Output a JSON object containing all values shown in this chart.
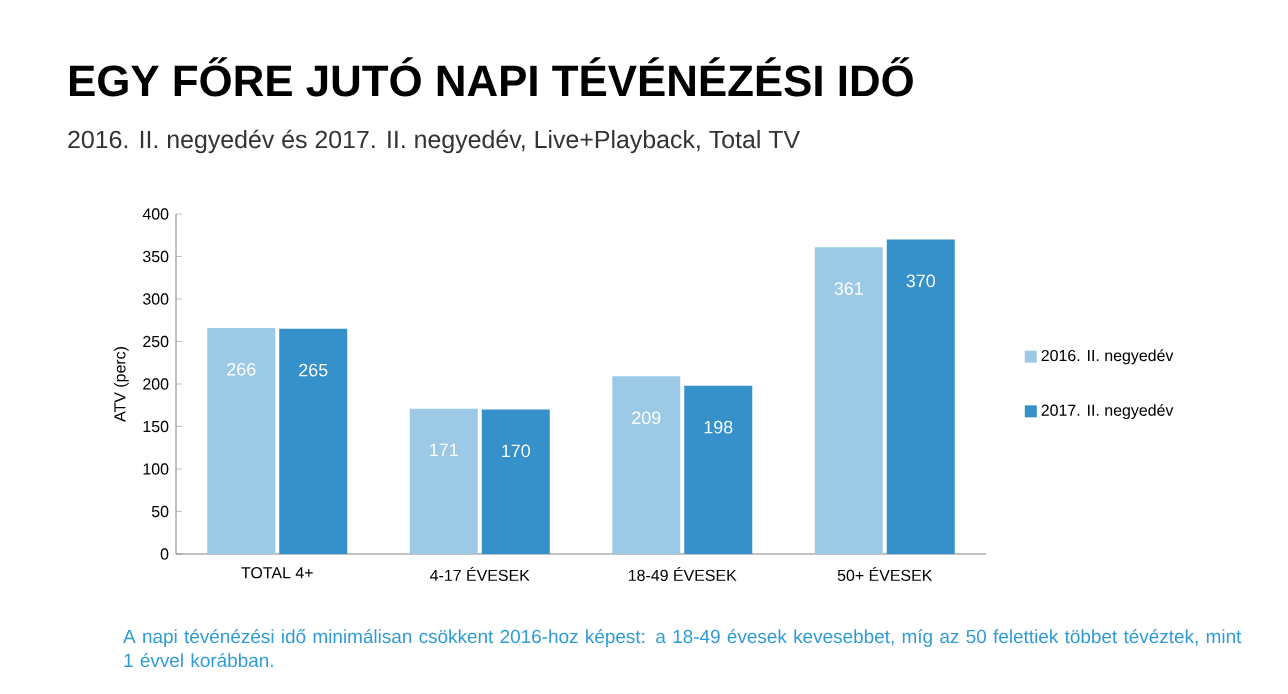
{
  "chart_data": {
    "type": "bar",
    "title": "EGY FŐRE JUTÓ NAPI TÉVÉNÉZÉSI IDŐ",
    "subtitle": "2016. II. negyedév és 2017. II. negyedév, Live+Playback, Total TV",
    "ylabel": "ATV (perc)",
    "categories": [
      "TOTAL 4+",
      "4-17 ÉVESEK",
      "18-49 ÉVESEK",
      "50+ ÉVESEK"
    ],
    "series": [
      {
        "name": "2016. II. negyedév",
        "color": "#9ccae6",
        "values": [
          266,
          171,
          209,
          361
        ]
      },
      {
        "name": "2017. II. negyedév",
        "color": "#3690c9",
        "values": [
          265,
          170,
          198,
          370
        ]
      }
    ],
    "ylim": [
      0,
      400
    ],
    "yticks": [
      0,
      50,
      100,
      150,
      200,
      250,
      300,
      350,
      400
    ],
    "data_labels": true,
    "legend": "right",
    "grid": false,
    "annotations": [
      "A napi tévénézési idő minimálisan csökkent 2016-hoz képest: a 18-49 évesek kevesebbet, míg az 50 felettiek többet tévéztek, mint 1 évvel korábban."
    ]
  }
}
